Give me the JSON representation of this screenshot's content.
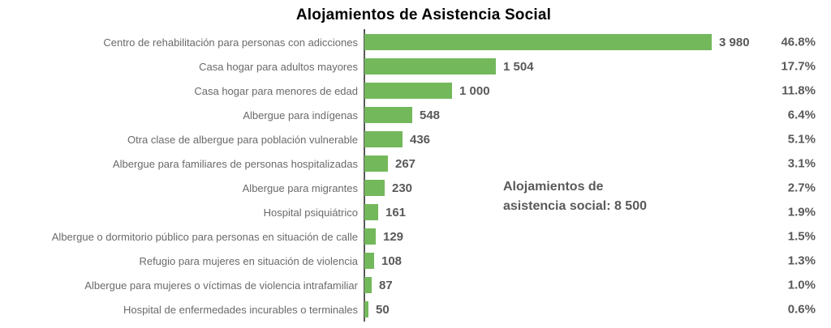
{
  "chart_data": {
    "type": "bar",
    "orientation": "horizontal",
    "title": "Alojamientos de Asistencia Social",
    "categories": [
      "Centro de rehabilitación para personas con adicciones",
      "Casa hogar para adultos mayores",
      "Casa hogar para menores de edad",
      "Albergue para indígenas",
      "Otra clase de albergue para población vulnerable",
      "Albergue para familiares de personas hospitalizadas",
      "Albergue para migrantes",
      "Hospital psiquiátrico",
      "Albergue o dormitorio público para personas en situación de calle",
      "Refugio para mujeres en situación de violencia",
      "Albergue para mujeres o víctimas de violencia intrafamiliar",
      "Hospital de enfermedades incurables o terminales"
    ],
    "values": [
      3980,
      1504,
      1000,
      548,
      436,
      267,
      230,
      161,
      129,
      108,
      87,
      50
    ],
    "value_labels": [
      "3 980",
      "1 504",
      "1 000",
      "548",
      "436",
      "267",
      "230",
      "161",
      "129",
      "108",
      "87",
      "50"
    ],
    "percent_labels": [
      "46.8%",
      "17.7%",
      "11.8%",
      "6.4%",
      "5.1%",
      "3.1%",
      "2.7%",
      "1.9%",
      "1.5%",
      "1.3%",
      "1.0%",
      "0.6%"
    ],
    "annotation": {
      "line1": "Alojamientos de",
      "line2": "asistencia social: 8 500",
      "total": 8500
    },
    "bar_color": "#74B85C",
    "axis_color": "#595959",
    "label_color": "#6a6a6a",
    "value_color": "#595959",
    "xlim": [
      0,
      3980
    ],
    "grid": false,
    "legend": false
  }
}
